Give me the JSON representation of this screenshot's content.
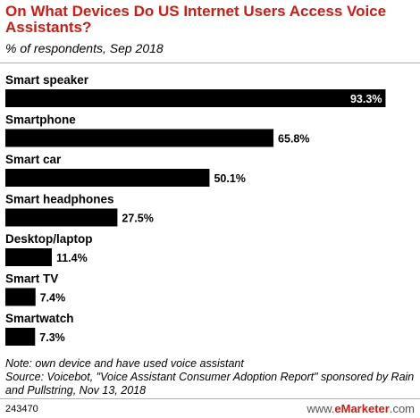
{
  "chart_data": {
    "type": "bar",
    "orientation": "horizontal",
    "title": "On What Devices Do US Internet Users Access Voice Assistants?",
    "subtitle": "% of respondents, Sep 2018",
    "categories": [
      "Smart speaker",
      "Smartphone",
      "Smart car",
      "Smart headphones",
      "Desktop/laptop",
      "Smart TV",
      "Smartwatch"
    ],
    "values": [
      93.3,
      65.8,
      50.1,
      27.5,
      11.4,
      7.4,
      7.3
    ],
    "value_labels": [
      "93.3%",
      "65.8%",
      "50.1%",
      "27.5%",
      "11.4%",
      "7.4%",
      "7.3%"
    ],
    "xlim": [
      0,
      100
    ],
    "grid": false,
    "bar_color": "#000000"
  },
  "notes": {
    "note": "Note: own device and have used voice assistant",
    "source": "Source: Voicebot, \"Voice Assistant Consumer Adoption Report\" sponsored by Rain and Pullstring, Nov 13, 2018"
  },
  "footer": {
    "chart_id": "243470",
    "brand_prefix": "www.",
    "brand_name": "eMarketer",
    "brand_suffix": ".com"
  },
  "colors": {
    "title": "#d11a12",
    "brand": "#d11a12"
  }
}
